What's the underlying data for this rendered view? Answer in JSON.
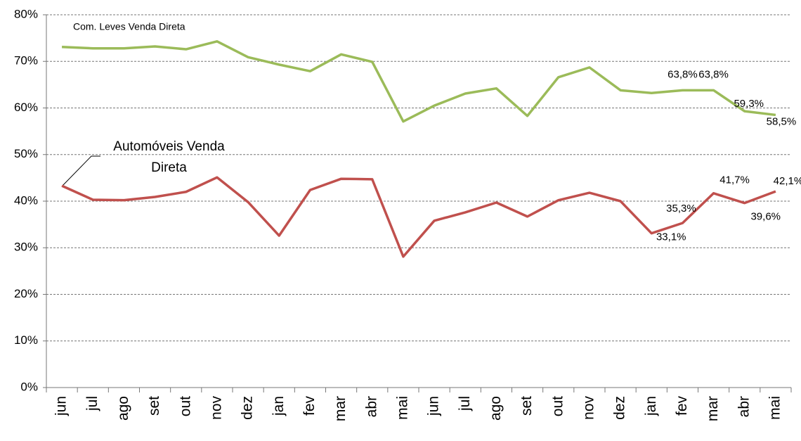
{
  "chart_data": {
    "type": "line",
    "categories": [
      "jun",
      "jul",
      "ago",
      "set",
      "out",
      "nov",
      "dez",
      "jan",
      "fev",
      "mar",
      "abr",
      "mai",
      "jun",
      "jul",
      "ago",
      "set",
      "out",
      "nov",
      "dez",
      "jan",
      "fev",
      "mar",
      "abr",
      "mai"
    ],
    "series": [
      {
        "name": "Com. Leves Venda Direta",
        "color": "#9bbb59",
        "values": [
          73.1,
          72.8,
          72.8,
          73.2,
          72.6,
          74.3,
          70.9,
          69.3,
          67.9,
          71.5,
          69.9,
          57.1,
          60.5,
          63.1,
          64.2,
          58.3,
          66.6,
          68.7,
          63.8,
          63.2,
          63.8,
          63.8,
          59.3,
          58.5
        ],
        "value_labels": [
          null,
          null,
          null,
          null,
          null,
          null,
          null,
          null,
          null,
          null,
          null,
          null,
          null,
          null,
          null,
          null,
          null,
          null,
          null,
          null,
          "63,8%",
          "63,8%",
          "59,3%",
          "58,5%"
        ]
      },
      {
        "name": "Automóveis Venda Direta",
        "color": "#c0504d",
        "values": [
          43.3,
          40.3,
          40.2,
          40.9,
          42.0,
          45.1,
          39.8,
          32.6,
          42.4,
          44.8,
          44.7,
          28.1,
          35.8,
          37.6,
          39.7,
          36.7,
          40.2,
          41.8,
          40.0,
          33.1,
          35.3,
          41.7,
          39.6,
          42.1
        ],
        "value_labels": [
          null,
          null,
          null,
          null,
          null,
          null,
          null,
          null,
          null,
          null,
          null,
          null,
          null,
          null,
          null,
          null,
          null,
          null,
          null,
          "33,1%",
          "35,3%",
          "41,7%",
          "39,6%",
          "42,1%"
        ]
      }
    ],
    "ylim": [
      0,
      80
    ],
    "yticks": [
      {
        "value": 0,
        "label": "0%"
      },
      {
        "value": 10,
        "label": "10%"
      },
      {
        "value": 20,
        "label": "20%"
      },
      {
        "value": 30,
        "label": "30%"
      },
      {
        "value": 40,
        "label": "40%"
      },
      {
        "value": 50,
        "label": "50%"
      },
      {
        "value": 60,
        "label": "60%"
      },
      {
        "value": 70,
        "label": "70%"
      },
      {
        "value": 80,
        "label": "80%"
      }
    ],
    "grid": true
  }
}
